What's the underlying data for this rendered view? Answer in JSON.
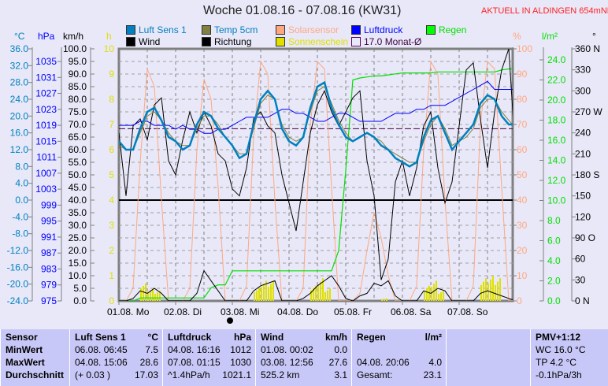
{
  "title": "Woche 01.08.16 - 07.08.16 (KW31)",
  "location": "AKTUELL IN ALDINGEN 654mNN",
  "legend": [
    {
      "label": "Luft Sens 1",
      "color": "#0080c0",
      "text_color": "#0080c0"
    },
    {
      "label": "Temp 5cm",
      "color": "#808040",
      "text_color": "#0080c0"
    },
    {
      "label": "Solarsensor",
      "color": "#ffa880",
      "text_color": "#ffa880"
    },
    {
      "label": "Luftdruck",
      "color": "#0000ff",
      "text_color": "#0000ff"
    },
    {
      "label": "Regen",
      "color": "#00ff00",
      "text_color": "#00e000"
    },
    {
      "label": "Wind",
      "color": "#000000",
      "text_color": "#000000"
    },
    {
      "label": "Richtung",
      "color": "#000000",
      "text_color": "#000000"
    },
    {
      "label": "Sonnenschein",
      "color": "#e0e000",
      "text_color": "#e0e000"
    },
    {
      "label": "17.0 Monat-Ø",
      "color": "#600060",
      "text_color": "#400040"
    }
  ],
  "axes": {
    "celsius": {
      "unit": "°C",
      "color": "#0080c0",
      "ticks": [
        "36.0",
        "32.0",
        "28.0",
        "24.0",
        "20.0",
        "16.0",
        "12.0",
        "8.0",
        "4.0",
        "0.0",
        "-4.0",
        "-8.0",
        "-12.0",
        "-16.0",
        "-20.0",
        "-24.0"
      ],
      "range": [
        -24,
        36
      ]
    },
    "hpa": {
      "unit": "hPa",
      "color": "#0000ff",
      "ticks": [
        "1035",
        "1031",
        "1027",
        "1023",
        "1019",
        "1015",
        "1011",
        "1007",
        "1003",
        "999",
        "995",
        "991",
        "987",
        "983",
        "979",
        "975"
      ],
      "range": [
        975,
        1035
      ]
    },
    "kmh": {
      "unit": "km/h",
      "color": "#000000",
      "ticks": [
        "100.0",
        "95.0",
        "90.0",
        "85.0",
        "80.0",
        "75.0",
        "70.0",
        "65.0",
        "60.0",
        "55.0",
        "50.0",
        "45.0",
        "40.0",
        "35.0",
        "30.0",
        "25.0",
        "20.0",
        "15.0",
        "10.0",
        "5.0",
        "0.0"
      ],
      "range": [
        0,
        100
      ]
    },
    "hours": {
      "unit": "h",
      "color": "#e0e000",
      "ticks": [
        "10",
        "9",
        "8",
        "7",
        "6",
        "5",
        "4",
        "3",
        "2",
        "1",
        "0"
      ],
      "range": [
        0,
        10
      ]
    },
    "percent": {
      "unit": "%",
      "color": "#ffa880",
      "ticks": [
        "100",
        "90",
        "80",
        "70",
        "60",
        "50",
        "40",
        "30",
        "20",
        "10",
        "0"
      ],
      "range": [
        0,
        100
      ]
    },
    "rain": {
      "unit": "l/m²",
      "color": "#00e000",
      "ticks": [
        "24.0",
        "22.0",
        "20.0",
        "18.0",
        "16.0",
        "14.0",
        "12.0",
        "10.0",
        "8.0",
        "6.0",
        "4.0",
        "2.0",
        "0.0"
      ],
      "range": [
        0,
        24
      ]
    },
    "direction": {
      "unit": "°",
      "color": "#000000",
      "ticks": [
        "360 N",
        "330",
        "300",
        "270 W",
        "240",
        "210",
        "180 S",
        "150",
        "120",
        "90  O",
        "60",
        "30",
        "0   N"
      ],
      "range": [
        0,
        360
      ]
    }
  },
  "chart_data": {
    "type": "line",
    "x_label_days": [
      "01.08.  Mo",
      "02.08.  Di",
      "03.08.  Mi",
      "04.08.  Do",
      "05.08.  Fr",
      "06.08.  Sa",
      "07.08.  So"
    ],
    "interval_hours": 3,
    "grid": true,
    "reference_lines": {
      "monthly_mean_celsius": 17.0,
      "zero_celsius": 0.0
    },
    "series": [
      {
        "name": "Luft Sens 1",
        "axis": "celsius",
        "values": [
          14,
          12,
          12,
          17,
          21,
          22,
          19,
          15,
          14,
          12,
          13,
          18,
          21,
          20,
          17,
          15,
          13,
          10,
          11,
          18,
          24,
          26,
          24,
          17,
          14,
          13,
          15,
          22,
          27,
          28,
          22,
          18,
          15,
          14,
          15,
          16,
          15,
          13,
          12,
          10,
          9,
          8,
          9,
          15,
          19,
          20,
          16,
          12,
          14,
          16,
          18,
          23,
          25,
          24,
          20,
          18,
          18
        ]
      },
      {
        "name": "Temp 5cm",
        "axis": "celsius",
        "values": [
          13,
          12,
          12,
          16,
          20,
          21,
          19,
          16,
          14,
          13,
          13,
          17,
          20,
          20,
          18,
          15,
          13,
          11,
          11,
          17,
          23,
          25,
          24,
          18,
          15,
          14,
          15,
          21,
          26,
          27,
          23,
          19,
          16,
          14,
          15,
          16,
          15,
          14,
          12,
          11,
          10,
          9,
          9,
          14,
          18,
          20,
          17,
          13,
          14,
          15,
          17,
          22,
          24,
          24,
          21,
          19,
          17
        ]
      },
      {
        "name": "Luftdruck",
        "axis": "hpa",
        "values": [
          1019,
          1019,
          1019,
          1020,
          1020,
          1019,
          1019,
          1019,
          1018,
          1019,
          1018,
          1018,
          1017,
          1017,
          1018,
          1018,
          1019,
          1020,
          1021,
          1021,
          1021,
          1021,
          1022,
          1023,
          1023,
          1022,
          1022,
          1021,
          1020,
          1020,
          1021,
          1022,
          1022,
          1021,
          1020,
          1020,
          1020,
          1020,
          1021,
          1022,
          1022,
          1022,
          1023,
          1023,
          1024,
          1024,
          1024,
          1025,
          1026,
          1027,
          1028,
          1029,
          1030,
          1028,
          1028,
          1028,
          1028
        ]
      },
      {
        "name": "Solarsensor",
        "axis": "percent",
        "values": [
          0,
          0,
          5,
          55,
          92,
          85,
          40,
          0,
          0,
          0,
          5,
          60,
          88,
          80,
          45,
          0,
          0,
          0,
          6,
          65,
          95,
          90,
          40,
          0,
          0,
          0,
          5,
          70,
          95,
          92,
          45,
          0,
          0,
          0,
          3,
          20,
          35,
          25,
          10,
          0,
          0,
          0,
          6,
          60,
          95,
          90,
          40,
          0,
          0,
          0,
          6,
          70,
          95,
          92,
          45,
          0,
          0
        ]
      },
      {
        "name": "Richtung",
        "axis": "direction",
        "values": [
          240,
          150,
          250,
          260,
          230,
          280,
          290,
          200,
          180,
          230,
          270,
          240,
          270,
          250,
          210,
          200,
          160,
          150,
          190,
          260,
          270,
          250,
          240,
          180,
          140,
          100,
          170,
          240,
          280,
          300,
          270,
          250,
          270,
          290,
          300,
          200,
          150,
          30,
          60,
          170,
          200,
          150,
          190,
          250,
          270,
          190,
          140,
          170,
          250,
          330,
          340,
          260,
          190,
          270,
          330,
          360,
          200
        ]
      },
      {
        "name": "Wind",
        "axis": "kmh",
        "values": [
          0,
          0,
          1,
          4,
          3,
          5,
          3,
          0,
          0,
          0,
          0,
          3,
          12,
          8,
          4,
          0,
          0,
          0,
          0,
          4,
          6,
          7,
          8,
          0,
          0,
          0,
          1,
          3,
          6,
          8,
          10,
          6,
          1,
          0,
          2,
          3,
          7,
          6,
          8,
          2,
          0,
          0,
          0,
          4,
          3,
          5,
          4,
          0,
          0,
          0,
          0,
          3,
          4,
          3,
          2,
          1,
          0
        ]
      },
      {
        "name": "Regen",
        "axis": "rain",
        "values": [
          0,
          0,
          0,
          0.3,
          0.3,
          0.3,
          0.3,
          0.3,
          0.3,
          0.3,
          0.3,
          0.3,
          0.3,
          1.3,
          1.6,
          1.6,
          3.0,
          3.0,
          3.0,
          3.0,
          3.0,
          3.0,
          3.0,
          3.0,
          3.0,
          3.0,
          3.0,
          3.0,
          3.0,
          3.0,
          3.0,
          5.0,
          13.0,
          22.0,
          22.2,
          22.3,
          22.4,
          22.4,
          22.5,
          22.6,
          22.7,
          22.7,
          22.7,
          22.7,
          22.7,
          22.8,
          22.8,
          22.8,
          22.8,
          22.8,
          22.8,
          22.8,
          22.8,
          22.8,
          23.0,
          23.1,
          23.1
        ]
      },
      {
        "name": "Sonnenschein",
        "axis": "hours",
        "values": [
          0,
          0,
          0,
          0.7,
          0.5,
          0.4,
          0,
          0,
          0,
          0,
          0,
          0,
          0,
          0,
          0,
          0,
          0,
          0,
          0,
          0.5,
          0.8,
          0.8,
          0,
          0,
          0,
          0,
          0,
          0.6,
          0.9,
          0.5,
          0,
          0,
          0,
          0,
          0,
          0,
          0,
          0.1,
          0,
          0,
          0,
          0,
          0,
          0.6,
          0.8,
          0.4,
          0,
          0,
          0,
          0,
          0,
          0.9,
          1.0,
          0.9,
          0,
          0,
          0
        ]
      }
    ]
  },
  "now_marker": "03.08.",
  "table": {
    "columns": [
      {
        "head": [
          "Sensor",
          ""
        ],
        "rows": [
          [
            "MinWert",
            ""
          ],
          [
            "MaxWert",
            ""
          ],
          [
            "Durchschnitt",
            ""
          ]
        ]
      },
      {
        "head": [
          "Luft Sens 1",
          "°C"
        ],
        "rows": [
          [
            "06.08.  06:45",
            "7.5"
          ],
          [
            "04.08.  15:06",
            "28.6"
          ],
          [
            "(+ 0.03 )",
            "17.03"
          ]
        ]
      },
      {
        "head": [
          "Luftdruck",
          "hPa"
        ],
        "rows": [
          [
            "04.08.  16:16",
            "1012"
          ],
          [
            "07.08.  01:15",
            "1030"
          ],
          [
            "^1.4hPa/h",
            "1021.1"
          ]
        ]
      },
      {
        "head": [
          "Wind",
          "km/h"
        ],
        "rows": [
          [
            "01.08.  00:02",
            "0.0"
          ],
          [
            "03.08.  12:56",
            "27.6"
          ],
          [
            "525.2 km",
            "3.1"
          ]
        ]
      },
      {
        "head": [
          "Regen",
          "l/m²"
        ],
        "rows": [
          [
            "",
            ""
          ],
          [
            "04.08.  20:06",
            "4.0"
          ],
          [
            "Gesamt:",
            "23.1"
          ]
        ]
      },
      {
        "head": [
          "",
          ""
        ],
        "rows": [
          [
            "",
            ""
          ],
          [
            "",
            ""
          ],
          [
            "",
            ""
          ]
        ]
      },
      {
        "head": [
          "PMV+1:12",
          ""
        ],
        "rows": [
          [
            "WC 16.0 °C",
            ""
          ],
          [
            "TP 4.2 °C",
            ""
          ],
          [
            "-0.1hPa/3h",
            ""
          ]
        ]
      }
    ]
  }
}
